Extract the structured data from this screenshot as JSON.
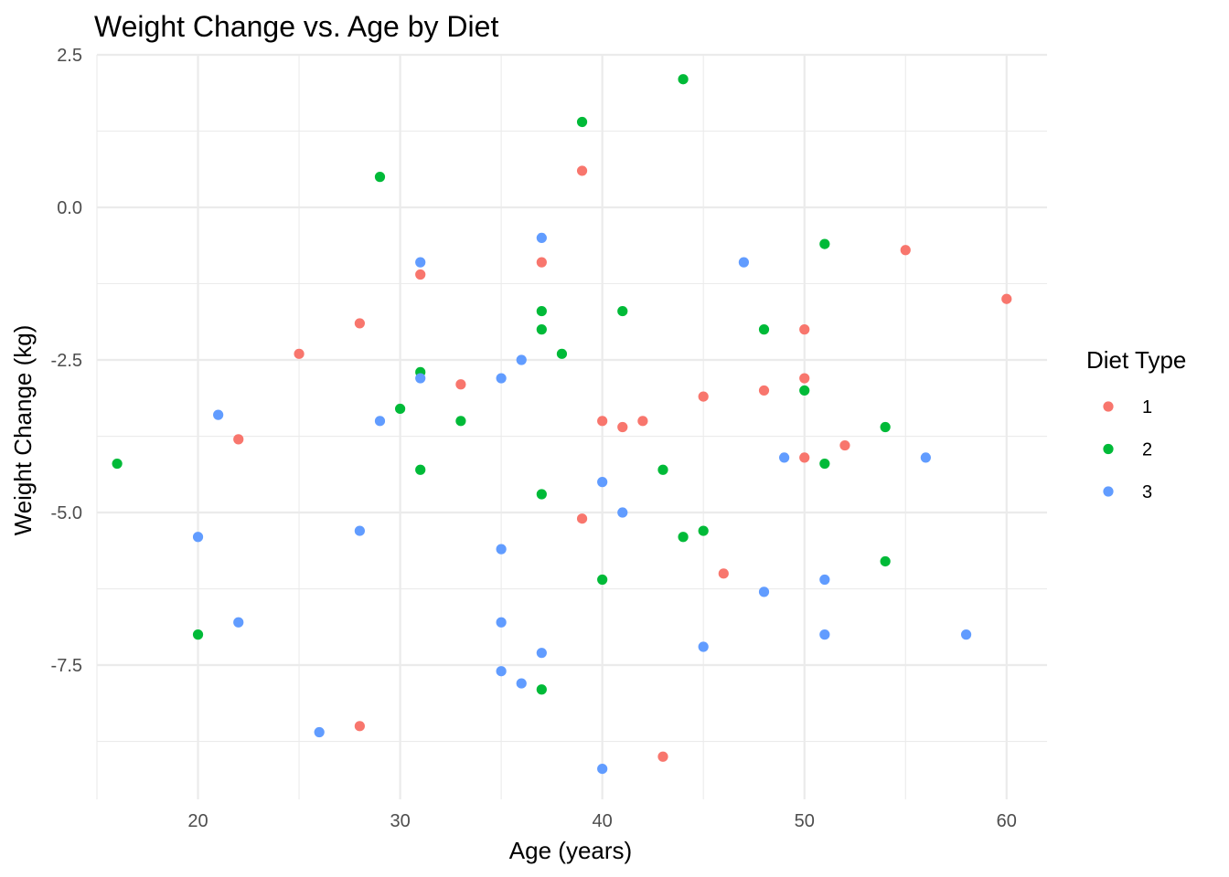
{
  "chart_data": {
    "type": "scatter",
    "title": "Weight Change vs. Age by Diet",
    "xlabel": "Age (years)",
    "ylabel": "Weight Change (kg)",
    "xlim": [
      15,
      62
    ],
    "ylim": [
      -9.7,
      2.5
    ],
    "x_ticks": [
      20,
      30,
      40,
      50,
      60
    ],
    "x_tick_labels": [
      "20",
      "30",
      "40",
      "50",
      "60"
    ],
    "y_ticks": [
      2.5,
      0,
      -2.5,
      -5,
      -7.5
    ],
    "y_tick_labels": [
      "2.5",
      "0.0",
      "-2.5",
      "-5.0",
      "-7.5"
    ],
    "grid": true,
    "legend": {
      "title": "Diet Type",
      "position": "right"
    },
    "series": [
      {
        "name": "1",
        "color": "#F8766D",
        "points": [
          [
            22,
            -3.8
          ],
          [
            25,
            -2.4
          ],
          [
            28,
            -1.9
          ],
          [
            28,
            -8.5
          ],
          [
            31,
            -1.1
          ],
          [
            33,
            -2.9
          ],
          [
            37,
            -0.9
          ],
          [
            39,
            0.6
          ],
          [
            39,
            -5.1
          ],
          [
            40,
            -3.5
          ],
          [
            41,
            -3.6
          ],
          [
            42,
            -3.5
          ],
          [
            43,
            -9.0
          ],
          [
            45,
            -3.1
          ],
          [
            46,
            -6.0
          ],
          [
            48,
            -3.0
          ],
          [
            50,
            -2.0
          ],
          [
            50,
            -2.8
          ],
          [
            50,
            -4.1
          ],
          [
            52,
            -3.9
          ],
          [
            55,
            -0.7
          ],
          [
            60,
            -1.5
          ]
        ]
      },
      {
        "name": "2",
        "color": "#00BA38",
        "points": [
          [
            16,
            -4.2
          ],
          [
            20,
            -7.0
          ],
          [
            29,
            0.5
          ],
          [
            30,
            -3.3
          ],
          [
            31,
            -2.7
          ],
          [
            31,
            -4.3
          ],
          [
            33,
            -3.5
          ],
          [
            37,
            -1.7
          ],
          [
            37,
            -2.0
          ],
          [
            37,
            -4.7
          ],
          [
            37,
            -7.9
          ],
          [
            38,
            -2.4
          ],
          [
            39,
            1.4
          ],
          [
            40,
            -6.1
          ],
          [
            41,
            -1.7
          ],
          [
            43,
            -4.3
          ],
          [
            44,
            2.1
          ],
          [
            44,
            -5.4
          ],
          [
            45,
            -5.3
          ],
          [
            48,
            -2.0
          ],
          [
            50,
            -3.0
          ],
          [
            51,
            -0.6
          ],
          [
            51,
            -4.2
          ],
          [
            54,
            -3.6
          ],
          [
            54,
            -5.8
          ]
        ]
      },
      {
        "name": "3",
        "color": "#619CFF",
        "points": [
          [
            20,
            -5.4
          ],
          [
            21,
            -3.4
          ],
          [
            22,
            -6.8
          ],
          [
            26,
            -8.6
          ],
          [
            28,
            -5.3
          ],
          [
            29,
            -3.5
          ],
          [
            31,
            -0.9
          ],
          [
            31,
            -2.8
          ],
          [
            35,
            -2.8
          ],
          [
            35,
            -5.6
          ],
          [
            35,
            -6.8
          ],
          [
            35,
            -7.6
          ],
          [
            36,
            -2.5
          ],
          [
            36,
            -7.8
          ],
          [
            37,
            -0.5
          ],
          [
            37,
            -7.3
          ],
          [
            40,
            -4.5
          ],
          [
            40,
            -9.2
          ],
          [
            41,
            -5.0
          ],
          [
            45,
            -7.2
          ],
          [
            47,
            -0.9
          ],
          [
            48,
            -6.3
          ],
          [
            49,
            -4.1
          ],
          [
            51,
            -6.1
          ],
          [
            51,
            -7.0
          ],
          [
            56,
            -4.1
          ],
          [
            58,
            -7.0
          ]
        ]
      }
    ]
  }
}
